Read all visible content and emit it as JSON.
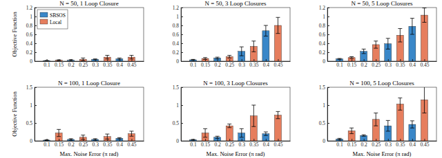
{
  "chart_data": [
    {
      "type": "bar",
      "title": "N = 50, 1 Loop Closure",
      "y_label": "Objective Function",
      "legend": "upper left",
      "grid": false,
      "xlim": [
        0.05,
        0.5
      ],
      "xticks": [
        0.1,
        0.15,
        0.2,
        0.25,
        0.3,
        0.35,
        0.4,
        0.45
      ],
      "ylim": [
        0,
        1.2
      ],
      "yticks": [
        0,
        0.2,
        0.4,
        0.6,
        0.8,
        1,
        1.2
      ],
      "series": [
        {
          "name": "SBSOS",
          "color": "#3a87c8",
          "x": [
            0.1,
            0.2,
            0.3,
            0.4
          ],
          "values": [
            0.01,
            0.02,
            0.04,
            0.05
          ],
          "errors": [
            0.005,
            0.015,
            0.01,
            0.02
          ]
        },
        {
          "name": "Local",
          "color": "#e67e5e",
          "x": [
            0.15,
            0.25,
            0.35,
            0.45
          ],
          "values": [
            0.02,
            0.04,
            0.09,
            0.09
          ],
          "errors": [
            0.01,
            0.03,
            0.04,
            0.04
          ]
        }
      ]
    },
    {
      "type": "bar",
      "title": "N = 50, 3 Loop Closures",
      "grid": false,
      "xlim": [
        0.05,
        0.5
      ],
      "xticks": [
        0.1,
        0.15,
        0.2,
        0.25,
        0.3,
        0.35,
        0.4,
        0.45
      ],
      "ylim": [
        0,
        1.2
      ],
      "yticks": [
        0,
        0.2,
        0.4,
        0.6,
        0.8,
        1,
        1.2
      ],
      "series": [
        {
          "name": "SBSOS",
          "color": "#3a87c8",
          "x": [
            0.1,
            0.2,
            0.3,
            0.4
          ],
          "values": [
            0.03,
            0.07,
            0.22,
            0.68
          ],
          "errors": [
            0.01,
            0.02,
            0.1,
            0.12
          ]
        },
        {
          "name": "Local",
          "color": "#e67e5e",
          "x": [
            0.15,
            0.25,
            0.35,
            0.45
          ],
          "values": [
            0.06,
            0.1,
            0.33,
            0.8
          ],
          "errors": [
            0.02,
            0.03,
            0.12,
            0.18
          ]
        }
      ]
    },
    {
      "type": "bar",
      "title": "N = 50, 5 Loop Closures",
      "grid": false,
      "xlim": [
        0.05,
        0.5
      ],
      "xticks": [
        0.1,
        0.15,
        0.2,
        0.25,
        0.3,
        0.35,
        0.4,
        0.45
      ],
      "ylim": [
        0,
        1.2
      ],
      "yticks": [
        0,
        0.2,
        0.4,
        0.6,
        0.8,
        1,
        1.2
      ],
      "series": [
        {
          "name": "SBSOS",
          "color": "#3a87c8",
          "x": [
            0.1,
            0.2,
            0.3,
            0.4
          ],
          "values": [
            0.05,
            0.22,
            0.39,
            0.78
          ],
          "errors": [
            0.01,
            0.05,
            0.12,
            0.18
          ]
        },
        {
          "name": "Local",
          "color": "#e67e5e",
          "x": [
            0.15,
            0.25,
            0.35,
            0.45
          ],
          "values": [
            0.08,
            0.37,
            0.58,
            1.03
          ],
          "errors": [
            0.02,
            0.08,
            0.15,
            0.16
          ]
        }
      ]
    },
    {
      "type": "bar",
      "title": "N = 100, 1 Loop Closure",
      "y_label": "Objective Function",
      "x_label": "Max. Noise Error (π rad)",
      "grid": false,
      "xlim": [
        0.05,
        0.5
      ],
      "xticks": [
        0.1,
        0.15,
        0.2,
        0.25,
        0.3,
        0.35,
        0.4,
        0.45
      ],
      "ylim": [
        0,
        1.5
      ],
      "yticks": [
        0,
        0.5,
        1,
        1.5
      ],
      "series": [
        {
          "name": "SBSOS",
          "color": "#3a87c8",
          "x": [
            0.1,
            0.2,
            0.3,
            0.4
          ],
          "values": [
            0.02,
            0.04,
            0.04,
            0.07
          ],
          "errors": [
            0.01,
            0.02,
            0.02,
            0.02
          ]
        },
        {
          "name": "Local",
          "color": "#e67e5e",
          "x": [
            0.15,
            0.25,
            0.35,
            0.45
          ],
          "values": [
            0.22,
            0.1,
            0.12,
            0.2
          ],
          "errors": [
            0.1,
            0.06,
            0.07,
            0.07
          ]
        }
      ]
    },
    {
      "type": "bar",
      "title": "N = 100, 3 Loop Closures",
      "x_label": "Max. Noise Error (π rad)",
      "grid": false,
      "xlim": [
        0.05,
        0.5
      ],
      "xticks": [
        0.1,
        0.15,
        0.2,
        0.25,
        0.3,
        0.35,
        0.4,
        0.45
      ],
      "ylim": [
        0,
        1.5
      ],
      "yticks": [
        0,
        0.5,
        1,
        1.5
      ],
      "series": [
        {
          "name": "SBSOS",
          "color": "#3a87c8",
          "x": [
            0.1,
            0.2,
            0.3,
            0.4
          ],
          "values": [
            0.03,
            0.1,
            0.22,
            0.2
          ],
          "errors": [
            0.01,
            0.03,
            0.12,
            0.05
          ]
        },
        {
          "name": "Local",
          "color": "#e67e5e",
          "x": [
            0.15,
            0.25,
            0.35,
            0.45
          ],
          "values": [
            0.22,
            0.42,
            0.7,
            0.72
          ],
          "errors": [
            0.12,
            0.05,
            0.3,
            0.1
          ]
        }
      ]
    },
    {
      "type": "bar",
      "title": "N = 100, 5 Loop Closures",
      "x_label": "Max. Noise Error (π rad)",
      "grid": false,
      "xlim": [
        0.05,
        0.5
      ],
      "xticks": [
        0.1,
        0.15,
        0.2,
        0.25,
        0.3,
        0.35,
        0.4,
        0.45
      ],
      "ylim": [
        0,
        1.5
      ],
      "yticks": [
        0,
        0.5,
        1,
        1.5
      ],
      "series": [
        {
          "name": "SBSOS",
          "color": "#3a87c8",
          "x": [
            0.1,
            0.2,
            0.3,
            0.4
          ],
          "values": [
            0.05,
            0.15,
            0.42,
            0.46
          ],
          "errors": [
            0.02,
            0.02,
            0.15,
            0.1
          ]
        },
        {
          "name": "Local",
          "color": "#e67e5e",
          "x": [
            0.15,
            0.25,
            0.35,
            0.45
          ],
          "values": [
            0.28,
            0.6,
            1.03,
            1.15
          ],
          "errors": [
            0.08,
            0.18,
            0.17,
            0.37
          ]
        }
      ]
    }
  ]
}
